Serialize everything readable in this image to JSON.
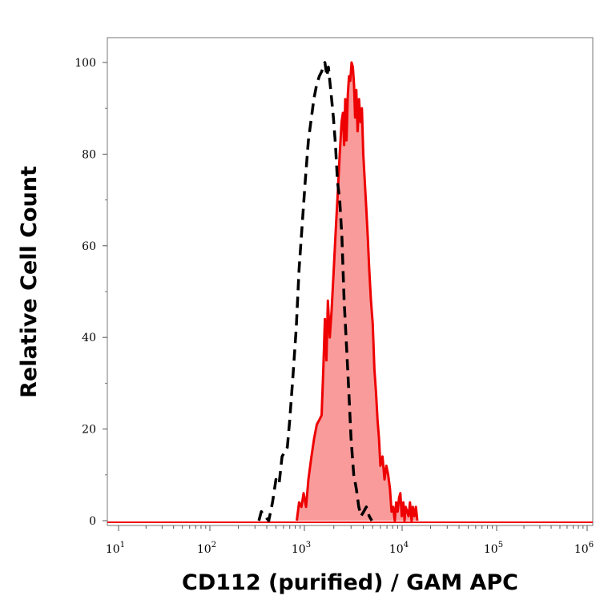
{
  "chart_data": {
    "type": "area",
    "title": "",
    "xlabel": "CD112 (purified) / GAM APC",
    "ylabel": "Relative Cell Count",
    "x_scale": "log",
    "xlim": [
      10,
      1000000
    ],
    "ylim": [
      0,
      100
    ],
    "y_ticks": [
      0,
      20,
      40,
      60,
      80,
      100
    ],
    "x_ticks": [
      {
        "value": 10,
        "base": "10",
        "exp": "1"
      },
      {
        "value": 100,
        "base": "10",
        "exp": "2"
      },
      {
        "value": 1000,
        "base": "10",
        "exp": "3"
      },
      {
        "value": 10000,
        "base": "10",
        "exp": "4"
      },
      {
        "value": 100000,
        "base": "10",
        "exp": "5"
      },
      {
        "value": 1000000,
        "base": "10",
        "exp": "6"
      }
    ],
    "grid": false,
    "legend": "none",
    "series": [
      {
        "style": "dashed-black",
        "color": "#000000",
        "fill": "none",
        "points": [
          [
            330,
            0
          ],
          [
            350,
            2
          ],
          [
            380,
            1
          ],
          [
            420,
            0
          ],
          [
            460,
            4
          ],
          [
            500,
            9
          ],
          [
            540,
            8
          ],
          [
            580,
            14
          ],
          [
            620,
            15
          ],
          [
            660,
            16
          ],
          [
            700,
            22
          ],
          [
            760,
            32
          ],
          [
            820,
            42
          ],
          [
            880,
            55
          ],
          [
            950,
            65
          ],
          [
            1020,
            74
          ],
          [
            1100,
            83
          ],
          [
            1180,
            88
          ],
          [
            1250,
            92
          ],
          [
            1330,
            95
          ],
          [
            1420,
            97
          ],
          [
            1500,
            98
          ],
          [
            1560,
            99
          ],
          [
            1620,
            100
          ],
          [
            1700,
            97
          ],
          [
            1760,
            99
          ],
          [
            1820,
            96
          ],
          [
            1900,
            92
          ],
          [
            1980,
            88
          ],
          [
            2080,
            82
          ],
          [
            2180,
            74
          ],
          [
            2300,
            70
          ],
          [
            2420,
            62
          ],
          [
            2550,
            48
          ],
          [
            2700,
            38
          ],
          [
            2850,
            28
          ],
          [
            3000,
            18
          ],
          [
            3200,
            10
          ],
          [
            3400,
            7
          ],
          [
            3600,
            3
          ],
          [
            3800,
            1
          ],
          [
            4050,
            2
          ],
          [
            4300,
            3
          ],
          [
            4600,
            1
          ],
          [
            4900,
            0
          ]
        ]
      },
      {
        "style": "solid-red-filled",
        "color": "#ee0000",
        "fill": "#f99b9b",
        "points": [
          [
            830,
            0
          ],
          [
            880,
            4
          ],
          [
            930,
            3
          ],
          [
            980,
            6
          ],
          [
            1040,
            3
          ],
          [
            1100,
            9
          ],
          [
            1180,
            14
          ],
          [
            1260,
            18
          ],
          [
            1340,
            21
          ],
          [
            1420,
            22
          ],
          [
            1500,
            23
          ],
          [
            1560,
            33
          ],
          [
            1620,
            44
          ],
          [
            1680,
            35
          ],
          [
            1740,
            48
          ],
          [
            1820,
            40
          ],
          [
            1900,
            46
          ],
          [
            2000,
            55
          ],
          [
            2100,
            64
          ],
          [
            2200,
            72
          ],
          [
            2300,
            80
          ],
          [
            2400,
            87
          ],
          [
            2480,
            89
          ],
          [
            2550,
            82
          ],
          [
            2620,
            92
          ],
          [
            2700,
            83
          ],
          [
            2780,
            93
          ],
          [
            2860,
            97
          ],
          [
            2950,
            96
          ],
          [
            3040,
            100
          ],
          [
            3130,
            99
          ],
          [
            3220,
            95
          ],
          [
            3300,
            88
          ],
          [
            3400,
            94
          ],
          [
            3500,
            85
          ],
          [
            3620,
            92
          ],
          [
            3750,
            87
          ],
          [
            3880,
            90
          ],
          [
            4000,
            80
          ],
          [
            4150,
            74
          ],
          [
            4300,
            68
          ],
          [
            4450,
            62
          ],
          [
            4600,
            55
          ],
          [
            4800,
            48
          ],
          [
            5000,
            43
          ],
          [
            5200,
            33
          ],
          [
            5400,
            28
          ],
          [
            5600,
            22
          ],
          [
            5800,
            18
          ],
          [
            6000,
            12
          ],
          [
            6300,
            14
          ],
          [
            6600,
            9
          ],
          [
            6900,
            12
          ],
          [
            7200,
            10
          ],
          [
            7500,
            7
          ],
          [
            7800,
            2
          ],
          [
            8100,
            3
          ],
          [
            8400,
            0
          ],
          [
            8700,
            4
          ],
          [
            9000,
            2
          ],
          [
            9300,
            5
          ],
          [
            9600,
            6
          ],
          [
            9900,
            1
          ],
          [
            10300,
            4
          ],
          [
            10600,
            0
          ],
          [
            10900,
            3
          ],
          [
            11300,
            2
          ],
          [
            11700,
            1
          ],
          [
            12100,
            4
          ],
          [
            12600,
            0
          ],
          [
            13000,
            3
          ],
          [
            13500,
            1
          ],
          [
            14000,
            3
          ],
          [
            14500,
            0
          ]
        ]
      }
    ]
  }
}
